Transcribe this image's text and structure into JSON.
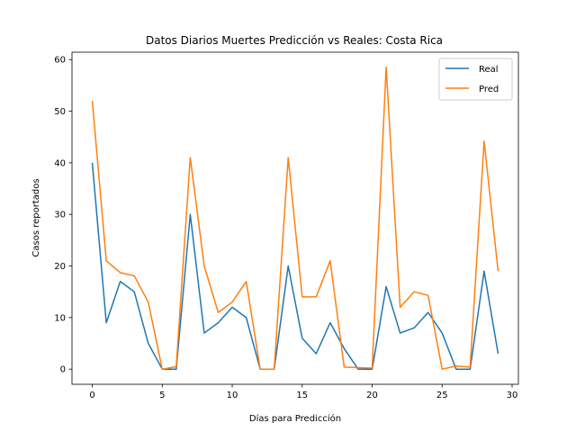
{
  "chart_data": {
    "type": "line",
    "title": "Datos Diarios Muertes Predicción vs Reales: Costa Rica",
    "xlabel": "Días para Predicción",
    "ylabel": "Casos reportados",
    "xlim": [
      -1.45,
      30.45
    ],
    "ylim": [
      -2.93,
      61.43
    ],
    "xticks": [
      0,
      5,
      10,
      15,
      20,
      25,
      30
    ],
    "yticks": [
      0,
      10,
      20,
      30,
      40,
      50,
      60
    ],
    "grid": false,
    "legend_position": "top-right",
    "x": [
      0,
      1,
      2,
      3,
      4,
      5,
      6,
      7,
      8,
      9,
      10,
      11,
      12,
      13,
      14,
      15,
      16,
      17,
      18,
      19,
      20,
      21,
      22,
      23,
      24,
      25,
      26,
      27,
      28,
      29
    ],
    "series": [
      {
        "name": "Real",
        "color": "#1f77b4",
        "values": [
          40,
          9,
          17,
          15,
          5,
          0,
          0,
          30,
          7,
          9,
          12,
          10,
          0,
          0,
          20,
          6,
          3,
          9,
          4,
          0,
          0,
          16,
          7,
          8,
          11,
          7,
          0,
          0,
          19,
          3
        ]
      },
      {
        "name": "Pred",
        "color": "#ff7f0e",
        "values": [
          52,
          21,
          18.7,
          18.1,
          13,
          0,
          0.5,
          41,
          20,
          11,
          13,
          17,
          0,
          0,
          41,
          14,
          14,
          21,
          0.4,
          0.3,
          0.2,
          58.5,
          12,
          15,
          14.3,
          0,
          0.6,
          0.4,
          44.2,
          19
        ]
      }
    ]
  }
}
